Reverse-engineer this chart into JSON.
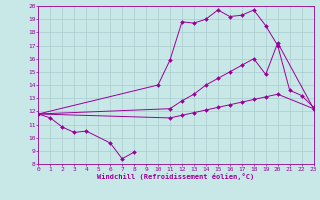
{
  "xlabel": "Windchill (Refroidissement éolien,°C)",
  "line1_x": [
    0,
    1,
    2,
    3,
    4,
    6,
    7,
    8
  ],
  "line1_y": [
    11.8,
    11.5,
    10.8,
    10.4,
    10.5,
    9.6,
    8.4,
    8.9
  ],
  "line2_x": [
    0,
    10,
    11,
    12,
    13,
    14,
    15,
    16,
    17,
    18,
    19,
    20,
    21,
    22,
    23
  ],
  "line2_y": [
    11.8,
    14.0,
    15.9,
    18.8,
    18.7,
    19.0,
    19.7,
    19.2,
    19.3,
    19.7,
    18.5,
    17.0,
    13.6,
    13.2,
    12.3
  ],
  "line3_x": [
    0,
    11,
    12,
    13,
    14,
    15,
    16,
    17,
    18,
    19,
    20,
    23
  ],
  "line3_y": [
    11.8,
    12.2,
    12.8,
    13.3,
    14.0,
    14.5,
    15.0,
    15.5,
    16.0,
    14.8,
    17.2,
    12.2
  ],
  "line4_x": [
    0,
    11,
    12,
    13,
    14,
    15,
    16,
    17,
    18,
    19,
    20,
    23
  ],
  "line4_y": [
    11.8,
    11.5,
    11.7,
    11.9,
    12.1,
    12.3,
    12.5,
    12.7,
    12.9,
    13.1,
    13.3,
    12.2
  ],
  "ylim": [
    8,
    20
  ],
  "xlim": [
    0,
    23
  ],
  "yticks": [
    8,
    9,
    10,
    11,
    12,
    13,
    14,
    15,
    16,
    17,
    18,
    19,
    20
  ],
  "xticks": [
    0,
    1,
    2,
    3,
    4,
    5,
    6,
    7,
    8,
    9,
    10,
    11,
    12,
    13,
    14,
    15,
    16,
    17,
    18,
    19,
    20,
    21,
    22,
    23
  ],
  "line_color": "#990099",
  "bg_color": "#c8e8e8",
  "grid_color": "#aacccc",
  "marker": "D",
  "markersize": 2,
  "linewidth": 0.7
}
